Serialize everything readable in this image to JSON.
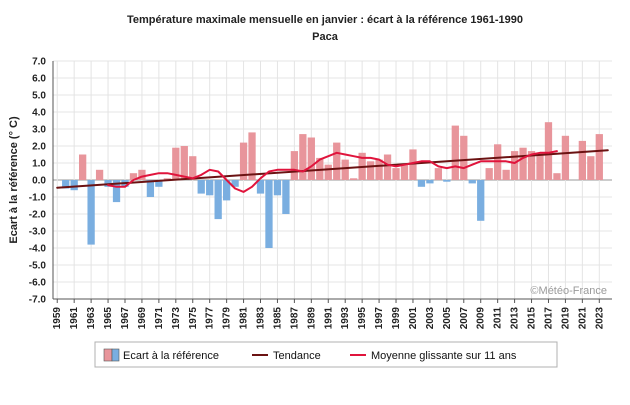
{
  "chart_data": {
    "type": "bar",
    "title": "Température maximale mensuelle en janvier : écart à la référence 1961-1990",
    "subtitle": "Paca",
    "ylabel": "Ecart à la référence (° C)",
    "xlabel": "",
    "ylim": [
      -7,
      7
    ],
    "ytick_step": 1,
    "ytick_labels": [
      "7.0",
      "6.0",
      "5.0",
      "4.0",
      "3.0",
      "2.0",
      "1.0",
      "0.0",
      "-1.0",
      "-2.0",
      "-3.0",
      "-4.0",
      "-5.0",
      "-6.0",
      "-7.0"
    ],
    "x_start": 1959,
    "x_end": 2024,
    "xtick_labels": [
      "1959",
      "1961",
      "1963",
      "1965",
      "1967",
      "1969",
      "1971",
      "1973",
      "1975",
      "1977",
      "1979",
      "1981",
      "1983",
      "1985",
      "1987",
      "1989",
      "1991",
      "1993",
      "1995",
      "1997",
      "1999",
      "2001",
      "2003",
      "2005",
      "2007",
      "2009",
      "2011",
      "2013",
      "2015",
      "2017",
      "2019",
      "2021",
      "2023"
    ],
    "grid": true,
    "credit": "©Météo-France",
    "colors": {
      "positive_bar": "#e8959b",
      "negative_bar": "#7aaee0",
      "trend": "#6b1212",
      "moving_average": "#e0143c",
      "grid": "#e4e4e4",
      "zero_line": "#9a9a9a"
    },
    "series": [
      {
        "name": "Ecart à la référence",
        "kind": "bar",
        "values": [
          {
            "x": 1960,
            "y": -0.5
          },
          {
            "x": 1961,
            "y": -0.6
          },
          {
            "x": 1962,
            "y": 1.5
          },
          {
            "x": 1963,
            "y": -3.8
          },
          {
            "x": 1964,
            "y": 0.6
          },
          {
            "x": 1965,
            "y": -0.4
          },
          {
            "x": 1966,
            "y": -1.3
          },
          {
            "x": 1967,
            "y": -0.4
          },
          {
            "x": 1968,
            "y": 0.4
          },
          {
            "x": 1969,
            "y": 0.6
          },
          {
            "x": 1970,
            "y": -1.0
          },
          {
            "x": 1971,
            "y": -0.4
          },
          {
            "x": 1972,
            "y": 0.1
          },
          {
            "x": 1973,
            "y": 1.9
          },
          {
            "x": 1974,
            "y": 2.0
          },
          {
            "x": 1975,
            "y": 1.4
          },
          {
            "x": 1976,
            "y": -0.8
          },
          {
            "x": 1977,
            "y": -0.9
          },
          {
            "x": 1978,
            "y": -2.3
          },
          {
            "x": 1979,
            "y": -1.2
          },
          {
            "x": 1980,
            "y": -0.4
          },
          {
            "x": 1981,
            "y": 2.2
          },
          {
            "x": 1982,
            "y": 2.8
          },
          {
            "x": 1983,
            "y": -0.8
          },
          {
            "x": 1984,
            "y": -4.0
          },
          {
            "x": 1985,
            "y": -0.9
          },
          {
            "x": 1986,
            "y": -2.0
          },
          {
            "x": 1987,
            "y": 1.7
          },
          {
            "x": 1988,
            "y": 2.7
          },
          {
            "x": 1989,
            "y": 2.5
          },
          {
            "x": 1990,
            "y": 1.3
          },
          {
            "x": 1991,
            "y": 0.9
          },
          {
            "x": 1992,
            "y": 2.2
          },
          {
            "x": 1993,
            "y": 1.2
          },
          {
            "x": 1994,
            "y": 0.1
          },
          {
            "x": 1995,
            "y": 1.6
          },
          {
            "x": 1996,
            "y": 1.1
          },
          {
            "x": 1997,
            "y": 1.2
          },
          {
            "x": 1998,
            "y": 1.5
          },
          {
            "x": 1999,
            "y": 0.7
          },
          {
            "x": 2000,
            "y": 0.9
          },
          {
            "x": 2001,
            "y": 1.8
          },
          {
            "x": 2002,
            "y": -0.4
          },
          {
            "x": 2003,
            "y": -0.2
          },
          {
            "x": 2004,
            "y": 0.7
          },
          {
            "x": 2005,
            "y": -0.1
          },
          {
            "x": 2006,
            "y": 3.2
          },
          {
            "x": 2007,
            "y": 2.6
          },
          {
            "x": 2008,
            "y": -0.2
          },
          {
            "x": 2009,
            "y": -2.4
          },
          {
            "x": 2010,
            "y": 0.7
          },
          {
            "x": 2011,
            "y": 2.1
          },
          {
            "x": 2012,
            "y": 0.6
          },
          {
            "x": 2013,
            "y": 1.7
          },
          {
            "x": 2014,
            "y": 1.9
          },
          {
            "x": 2015,
            "y": 1.7
          },
          {
            "x": 2016,
            "y": 1.6
          },
          {
            "x": 2017,
            "y": 3.4
          },
          {
            "x": 2018,
            "y": 0.4
          },
          {
            "x": 2019,
            "y": 2.6
          },
          {
            "x": 2021,
            "y": 2.3
          },
          {
            "x": 2022,
            "y": 1.4
          },
          {
            "x": 2023,
            "y": 2.7
          }
        ]
      },
      {
        "name": "Tendance",
        "kind": "line",
        "values": [
          {
            "x": 1959,
            "y": -0.45
          },
          {
            "x": 2024,
            "y": 1.75
          }
        ]
      },
      {
        "name": "Moyenne glissante sur 11 ans",
        "kind": "line",
        "values": [
          {
            "x": 1965,
            "y": -0.3
          },
          {
            "x": 1966,
            "y": -0.4
          },
          {
            "x": 1967,
            "y": -0.4
          },
          {
            "x": 1968,
            "y": 0.0
          },
          {
            "x": 1969,
            "y": 0.2
          },
          {
            "x": 1970,
            "y": 0.3
          },
          {
            "x": 1971,
            "y": 0.4
          },
          {
            "x": 1972,
            "y": 0.4
          },
          {
            "x": 1973,
            "y": 0.3
          },
          {
            "x": 1974,
            "y": 0.2
          },
          {
            "x": 1975,
            "y": 0.1
          },
          {
            "x": 1976,
            "y": 0.3
          },
          {
            "x": 1977,
            "y": 0.6
          },
          {
            "x": 1978,
            "y": 0.5
          },
          {
            "x": 1979,
            "y": 0.0
          },
          {
            "x": 1980,
            "y": -0.5
          },
          {
            "x": 1981,
            "y": -0.7
          },
          {
            "x": 1982,
            "y": -0.4
          },
          {
            "x": 1983,
            "y": 0.1
          },
          {
            "x": 1984,
            "y": 0.5
          },
          {
            "x": 1985,
            "y": 0.6
          },
          {
            "x": 1986,
            "y": 0.6
          },
          {
            "x": 1987,
            "y": 0.6
          },
          {
            "x": 1988,
            "y": 0.5
          },
          {
            "x": 1989,
            "y": 0.8
          },
          {
            "x": 1990,
            "y": 1.2
          },
          {
            "x": 1991,
            "y": 1.4
          },
          {
            "x": 1992,
            "y": 1.6
          },
          {
            "x": 1993,
            "y": 1.5
          },
          {
            "x": 1994,
            "y": 1.4
          },
          {
            "x": 1995,
            "y": 1.3
          },
          {
            "x": 1996,
            "y": 1.3
          },
          {
            "x": 1997,
            "y": 1.2
          },
          {
            "x": 1998,
            "y": 0.9
          },
          {
            "x": 1999,
            "y": 0.8
          },
          {
            "x": 2000,
            "y": 0.9
          },
          {
            "x": 2001,
            "y": 1.0
          },
          {
            "x": 2002,
            "y": 1.1
          },
          {
            "x": 2003,
            "y": 1.1
          },
          {
            "x": 2004,
            "y": 0.8
          },
          {
            "x": 2005,
            "y": 0.7
          },
          {
            "x": 2006,
            "y": 0.8
          },
          {
            "x": 2007,
            "y": 0.7
          },
          {
            "x": 2008,
            "y": 0.9
          },
          {
            "x": 2009,
            "y": 1.1
          },
          {
            "x": 2010,
            "y": 1.1
          },
          {
            "x": 2011,
            "y": 1.1
          },
          {
            "x": 2012,
            "y": 1.1
          },
          {
            "x": 2013,
            "y": 1.0
          },
          {
            "x": 2014,
            "y": 1.3
          },
          {
            "x": 2015,
            "y": 1.5
          },
          {
            "x": 2016,
            "y": 1.6
          },
          {
            "x": 2017,
            "y": 1.6
          },
          {
            "x": 2018,
            "y": 1.7
          }
        ]
      }
    ],
    "legend": [
      {
        "label": "Ecart à la référence",
        "symbol": "bars"
      },
      {
        "label": "Tendance",
        "symbol": "line",
        "color": "#6b1212"
      },
      {
        "label": "Moyenne glissante sur 11 ans",
        "symbol": "line",
        "color": "#e0143c"
      }
    ],
    "legend_position": "bottom"
  }
}
